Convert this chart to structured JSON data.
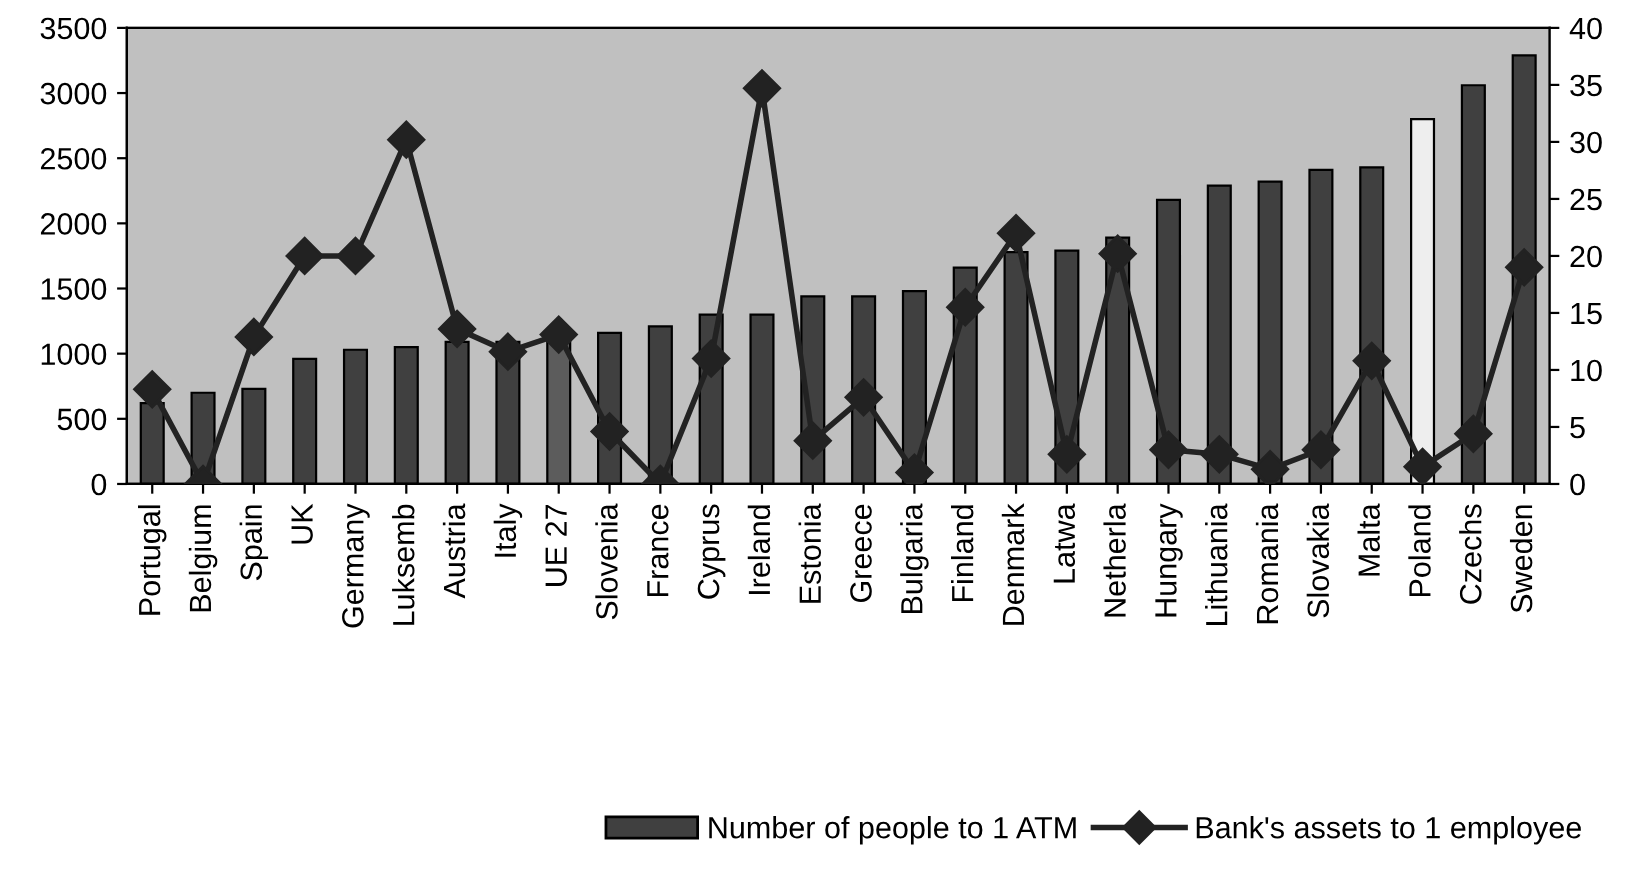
{
  "chart_data": {
    "type": "bar",
    "categories": [
      "Portugal",
      "Belgium",
      "Spain",
      "UK",
      "Germany",
      "Luksemb",
      "Austria",
      "Italy",
      "UE 27",
      "Slovenia",
      "France",
      "Cyprus",
      "Ireland",
      "Estonia",
      "Greece",
      "Bulgaria",
      "Finland",
      "Denmark",
      "Latwa",
      "Netherla",
      "Hungary",
      "Lithuania",
      "Romania",
      "Slovakia",
      "Malta",
      "Poland",
      "Czechs",
      "Sweden"
    ],
    "series": [
      {
        "name": "Number of people to 1 ATM",
        "color": "#404040",
        "colors": [
          "#404040",
          "#404040",
          "#404040",
          "#404040",
          "#404040",
          "#404040",
          "#404040",
          "#404040",
          "#5c5c5c",
          "#404040",
          "#404040",
          "#404040",
          "#404040",
          "#404040",
          "#404040",
          "#404040",
          "#404040",
          "#404040",
          "#404040",
          "#404040",
          "#404040",
          "#404040",
          "#404040",
          "#404040",
          "#404040",
          "#eeeeee",
          "#404040",
          "#404040"
        ],
        "values": [
          620,
          700,
          730,
          960,
          1030,
          1050,
          1090,
          1090,
          1130,
          1160,
          1210,
          1300,
          1300,
          1440,
          1440,
          1480,
          1660,
          1780,
          1790,
          1890,
          2180,
          2290,
          2320,
          2410,
          2430,
          2800,
          3060,
          3290
        ]
      },
      {
        "name": "Bank's assets to 1 employee",
        "type": "line",
        "axis": "y2",
        "color": "#222222",
        "marker": "diamond",
        "values": [
          8.3,
          0,
          12.9,
          20,
          20,
          30.2,
          13.6,
          11.6,
          13.1,
          4.6,
          0,
          11,
          34.7,
          3.8,
          7.6,
          1.0,
          15.5,
          22,
          2.6,
          20.2,
          3,
          2.6,
          1.3,
          3,
          10.8,
          1.5,
          4.4,
          19
        ]
      }
    ],
    "ylim": [
      0,
      3500
    ],
    "yticks": [
      0,
      500,
      1000,
      1500,
      2000,
      2500,
      3000,
      3500
    ],
    "y2lim": [
      0,
      40
    ],
    "y2ticks": [
      0,
      5,
      10,
      15,
      20,
      25,
      30,
      35,
      40
    ],
    "grid": false,
    "legend": "bottom right"
  }
}
